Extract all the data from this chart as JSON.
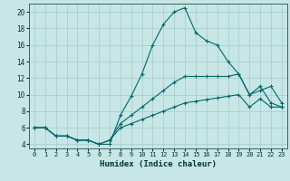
{
  "xlabel": "Humidex (Indice chaleur)",
  "background_color": "#c8e6e6",
  "grid_color": "#a8d0d0",
  "line_color": "#006868",
  "xlim": [
    -0.5,
    23.5
  ],
  "ylim": [
    3.5,
    21.0
  ],
  "yticks": [
    4,
    6,
    8,
    10,
    12,
    14,
    16,
    18,
    20
  ],
  "xticks": [
    0,
    1,
    2,
    3,
    4,
    5,
    6,
    7,
    8,
    9,
    10,
    11,
    12,
    13,
    14,
    15,
    16,
    17,
    18,
    19,
    20,
    21,
    22,
    23
  ],
  "line1_x": [
    0,
    1,
    2,
    3,
    4,
    5,
    6,
    7,
    8,
    9,
    10,
    11,
    12,
    13,
    14,
    15,
    16,
    17,
    18,
    19,
    20,
    21,
    22,
    23
  ],
  "line1_y": [
    6.0,
    6.0,
    5.0,
    5.0,
    4.5,
    4.5,
    4.0,
    4.0,
    7.5,
    9.8,
    12.5,
    16.0,
    18.5,
    20.0,
    20.5,
    17.5,
    16.5,
    16.0,
    14.0,
    12.5,
    10.0,
    10.5,
    11.0,
    9.0
  ],
  "line2_x": [
    0,
    1,
    2,
    3,
    4,
    5,
    6,
    7,
    8,
    9,
    10,
    11,
    12,
    13,
    14,
    15,
    16,
    17,
    18,
    19,
    20,
    21,
    22,
    23
  ],
  "line2_y": [
    6.0,
    6.0,
    5.0,
    5.0,
    4.5,
    4.5,
    4.0,
    4.5,
    6.5,
    7.5,
    8.5,
    9.5,
    10.5,
    11.5,
    12.2,
    12.2,
    12.2,
    12.2,
    12.2,
    12.5,
    10.0,
    11.0,
    9.0,
    8.5
  ],
  "line3_x": [
    0,
    1,
    2,
    3,
    4,
    5,
    6,
    7,
    8,
    9,
    10,
    11,
    12,
    13,
    14,
    15,
    16,
    17,
    18,
    19,
    20,
    21,
    22,
    23
  ],
  "line3_y": [
    6.0,
    6.0,
    5.0,
    5.0,
    4.5,
    4.5,
    4.0,
    4.5,
    6.0,
    6.5,
    7.0,
    7.5,
    8.0,
    8.5,
    9.0,
    9.2,
    9.4,
    9.6,
    9.8,
    10.0,
    8.5,
    9.5,
    8.5,
    8.5
  ]
}
